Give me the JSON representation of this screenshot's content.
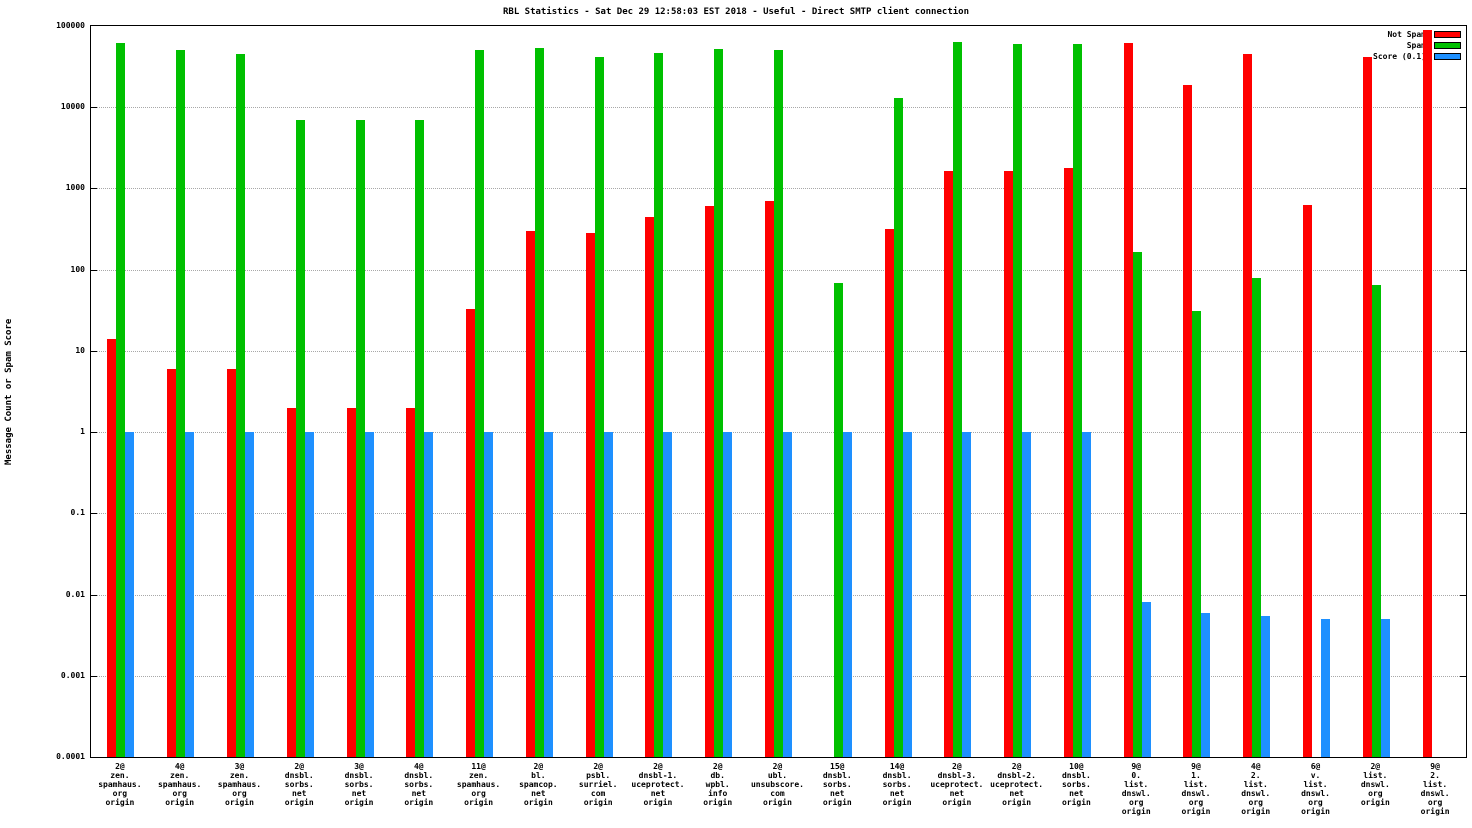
{
  "chart_data": {
    "type": "bar",
    "title": "RBL Statistics - Sat Dec 29 12:58:03 EST 2018 - Useful - Direct SMTP client connection",
    "ylabel": "Message Count or Spam Score",
    "xlabel": "",
    "yscale": "log",
    "ylim": [
      0.0001,
      100000
    ],
    "grid": true,
    "legend_position": "top-right",
    "ytick_labels": [
      "100000",
      "10000",
      "1000",
      "100",
      "10",
      "1",
      "0.1",
      "0.01",
      "0.001",
      "0.0001"
    ],
    "legend": [
      {
        "name": "Not Spam",
        "color": "#ff0000"
      },
      {
        "name": "Spam",
        "color": "#00c000"
      },
      {
        "name": "Score (0.1)",
        "color": "#1e90ff"
      }
    ],
    "categories": [
      [
        "2@",
        "zen.",
        "spamhaus.",
        "org",
        "origin"
      ],
      [
        "4@",
        "zen.",
        "spamhaus.",
        "org",
        "origin"
      ],
      [
        "3@",
        "zen.",
        "spamhaus.",
        "org",
        "origin"
      ],
      [
        "2@",
        "dnsbl.",
        "sorbs.",
        "net",
        "origin"
      ],
      [
        "3@",
        "dnsbl.",
        "sorbs.",
        "net",
        "origin"
      ],
      [
        "4@",
        "dnsbl.",
        "sorbs.",
        "net",
        "origin"
      ],
      [
        "11@",
        "zen.",
        "spamhaus.",
        "org",
        "origin"
      ],
      [
        "2@",
        "bl.",
        "spamcop.",
        "net",
        "origin"
      ],
      [
        "2@",
        "psbl.",
        "surriel.",
        "com",
        "origin"
      ],
      [
        "2@",
        "dnsbl-1.",
        "uceprotect.",
        "net",
        "origin"
      ],
      [
        "2@",
        "db.",
        "wpbl.",
        "info",
        "origin"
      ],
      [
        "2@",
        "ubl.",
        "unsubscore.",
        "com",
        "origin"
      ],
      [
        "15@",
        "dnsbl.",
        "sorbs.",
        "net",
        "origin"
      ],
      [
        "14@",
        "dnsbl.",
        "sorbs.",
        "net",
        "origin"
      ],
      [
        "2@",
        "dnsbl-3.",
        "uceprotect.",
        "net",
        "origin"
      ],
      [
        "2@",
        "dnsbl-2.",
        "uceprotect.",
        "net",
        "origin"
      ],
      [
        "10@",
        "dnsbl.",
        "sorbs.",
        "net",
        "origin"
      ],
      [
        "9@",
        "0.",
        "list.",
        "dnswl.",
        "org",
        "origin"
      ],
      [
        "9@",
        "1.",
        "list.",
        "dnswl.",
        "org",
        "origin"
      ],
      [
        "4@",
        "2.",
        "list.",
        "dnswl.",
        "org",
        "origin"
      ],
      [
        "6@",
        "v.",
        "list.",
        "dnswl.",
        "org",
        "origin"
      ],
      [
        "2@",
        "list.",
        "dnswl.",
        "org",
        "origin"
      ],
      [
        "9@",
        "2.",
        "list.",
        "dnswl.",
        "org",
        "origin"
      ]
    ],
    "series": [
      {
        "name": "Not Spam",
        "color": "#ff0000",
        "values": [
          14,
          6,
          6,
          2,
          2,
          2,
          33,
          300,
          280,
          440,
          600,
          700,
          null,
          320,
          1650,
          1650,
          1800,
          62000,
          19000,
          45000,
          620,
          41000,
          90000
        ]
      },
      {
        "name": "Spam",
        "color": "#00c000",
        "values": [
          62000,
          50000,
          45000,
          7000,
          7000,
          7000,
          50000,
          53000,
          41000,
          46000,
          52000,
          50000,
          68,
          13000,
          64000,
          60000,
          60000,
          165,
          31,
          78,
          null,
          65,
          null
        ]
      },
      {
        "name": "Score (0.1)",
        "color": "#1e90ff",
        "values": [
          1,
          1,
          1,
          1,
          1,
          1,
          1,
          1,
          1,
          1,
          1,
          1,
          1,
          1,
          1,
          1,
          1,
          0.008,
          0.006,
          0.0055,
          0.005,
          0.005,
          null
        ]
      }
    ]
  }
}
